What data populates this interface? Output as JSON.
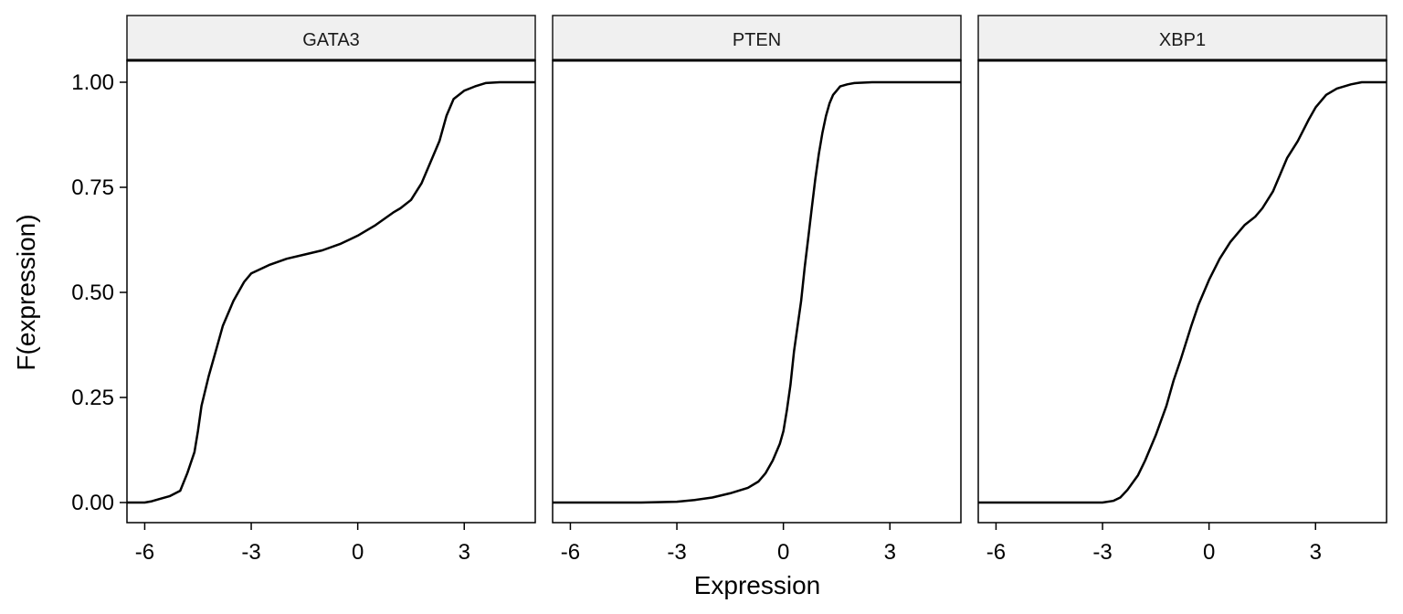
{
  "chart_data": {
    "type": "line",
    "xlabel": "Expression",
    "ylabel": "F(expression)",
    "xlim": [
      -6.5,
      5.0
    ],
    "ylim": [
      -0.05,
      1.0
    ],
    "x_ticks": [
      -6,
      -3,
      0,
      3
    ],
    "x_tick_labels": [
      "-6",
      "-3",
      "0",
      "3"
    ],
    "y_ticks": [
      0,
      0.25,
      0.5,
      0.75,
      1.0
    ],
    "y_tick_labels": [
      "0.00",
      "0.25",
      "0.50",
      "0.75",
      "1.00"
    ],
    "grid": false,
    "panels": [
      {
        "title": "GATA3",
        "x": [
          -6.5,
          -6.0,
          -5.8,
          -5.6,
          -5.3,
          -5.0,
          -4.8,
          -4.6,
          -4.5,
          -4.4,
          -4.2,
          -4.0,
          -3.8,
          -3.5,
          -3.2,
          -3.0,
          -2.5,
          -2.0,
          -1.5,
          -1.0,
          -0.5,
          0.0,
          0.5,
          1.0,
          1.2,
          1.5,
          1.8,
          2.0,
          2.3,
          2.5,
          2.7,
          3.0,
          3.3,
          3.6,
          4.0,
          5.0
        ],
        "y": [
          0.0,
          0.0,
          0.003,
          0.008,
          0.015,
          0.028,
          0.07,
          0.12,
          0.17,
          0.23,
          0.3,
          0.36,
          0.42,
          0.48,
          0.525,
          0.545,
          0.565,
          0.58,
          0.59,
          0.6,
          0.615,
          0.635,
          0.66,
          0.69,
          0.7,
          0.72,
          0.76,
          0.8,
          0.86,
          0.92,
          0.96,
          0.98,
          0.99,
          0.998,
          1.0,
          1.0
        ]
      },
      {
        "title": "PTEN",
        "x": [
          -6.5,
          -4.0,
          -3.0,
          -2.5,
          -2.0,
          -1.5,
          -1.0,
          -0.7,
          -0.5,
          -0.3,
          -0.1,
          0.0,
          0.1,
          0.2,
          0.3,
          0.4,
          0.5,
          0.6,
          0.7,
          0.8,
          0.9,
          1.0,
          1.1,
          1.2,
          1.3,
          1.4,
          1.5,
          1.6,
          1.8,
          2.0,
          2.5,
          3.0,
          5.0
        ],
        "y": [
          0.0,
          0.0,
          0.002,
          0.006,
          0.012,
          0.022,
          0.035,
          0.05,
          0.07,
          0.1,
          0.14,
          0.17,
          0.22,
          0.28,
          0.36,
          0.42,
          0.48,
          0.56,
          0.63,
          0.7,
          0.77,
          0.83,
          0.88,
          0.92,
          0.95,
          0.97,
          0.98,
          0.99,
          0.995,
          0.998,
          1.0,
          1.0,
          1.0
        ]
      },
      {
        "title": "XBP1",
        "x": [
          -6.5,
          -3.0,
          -2.7,
          -2.5,
          -2.3,
          -2.0,
          -1.8,
          -1.5,
          -1.2,
          -1.0,
          -0.8,
          -0.5,
          -0.3,
          0.0,
          0.3,
          0.6,
          1.0,
          1.3,
          1.5,
          1.8,
          2.0,
          2.2,
          2.5,
          2.8,
          3.0,
          3.3,
          3.6,
          4.0,
          4.3,
          5.0
        ],
        "y": [
          0.0,
          0.0,
          0.004,
          0.012,
          0.03,
          0.065,
          0.1,
          0.16,
          0.23,
          0.29,
          0.34,
          0.42,
          0.47,
          0.53,
          0.58,
          0.62,
          0.66,
          0.68,
          0.7,
          0.74,
          0.78,
          0.82,
          0.86,
          0.91,
          0.94,
          0.97,
          0.985,
          0.995,
          1.0,
          1.0
        ]
      }
    ]
  }
}
